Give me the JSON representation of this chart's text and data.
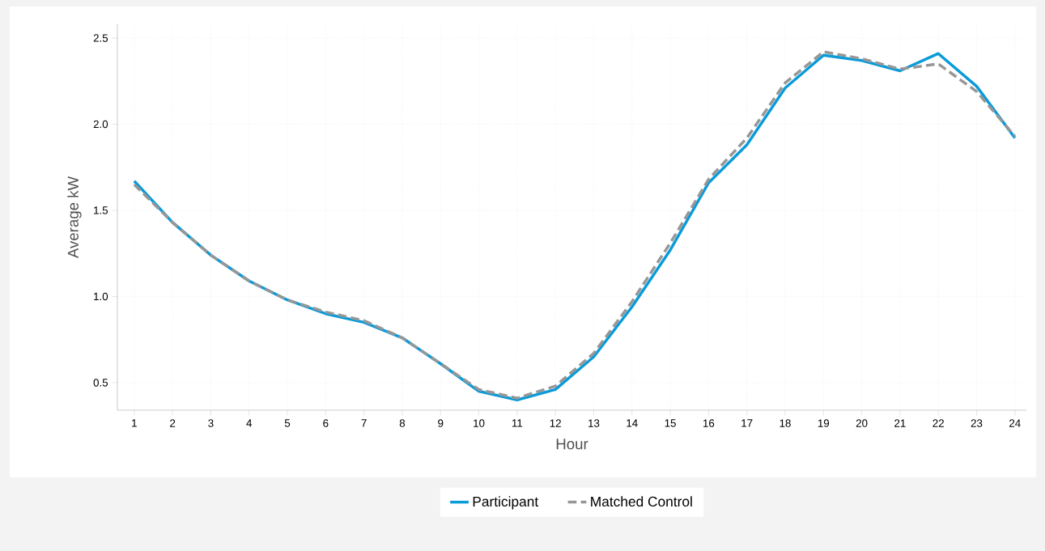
{
  "chart_data": {
    "type": "line",
    "xlabel": "Hour",
    "ylabel": "Average kW",
    "x": [
      1,
      2,
      3,
      4,
      5,
      6,
      7,
      8,
      9,
      10,
      11,
      12,
      13,
      14,
      15,
      16,
      17,
      18,
      19,
      20,
      21,
      22,
      23,
      24
    ],
    "series": [
      {
        "name": "Participant",
        "color": "#0a9bd9",
        "line_style": "solid",
        "values": [
          1.67,
          1.43,
          1.24,
          1.09,
          0.98,
          0.9,
          0.85,
          0.76,
          0.61,
          0.45,
          0.4,
          0.46,
          0.65,
          0.94,
          1.27,
          1.66,
          1.88,
          2.21,
          2.4,
          2.37,
          2.31,
          2.41,
          2.22,
          1.92
        ]
      },
      {
        "name": "Matched Control",
        "color": "#979797",
        "line_style": "dashed",
        "values": [
          1.65,
          1.43,
          1.24,
          1.09,
          0.98,
          0.91,
          0.86,
          0.76,
          0.61,
          0.46,
          0.41,
          0.48,
          0.67,
          0.97,
          1.31,
          1.68,
          1.92,
          2.24,
          2.42,
          2.38,
          2.32,
          2.35,
          2.19,
          1.93
        ]
      }
    ],
    "xlim": [
      0.56,
      24.3
    ],
    "ylim": [
      0.34,
      2.58
    ],
    "xticks": [
      1,
      2,
      3,
      4,
      5,
      6,
      7,
      8,
      9,
      10,
      11,
      12,
      13,
      14,
      15,
      16,
      17,
      18,
      19,
      20,
      21,
      22,
      23,
      24
    ],
    "yticks": [
      0.5,
      {
        "value": 1,
        "label": "1.0"
      },
      1.5,
      {
        "value": 2,
        "label": "2.0"
      },
      2.5
    ],
    "grid": true,
    "legend": "bottom",
    "marker": "none"
  }
}
